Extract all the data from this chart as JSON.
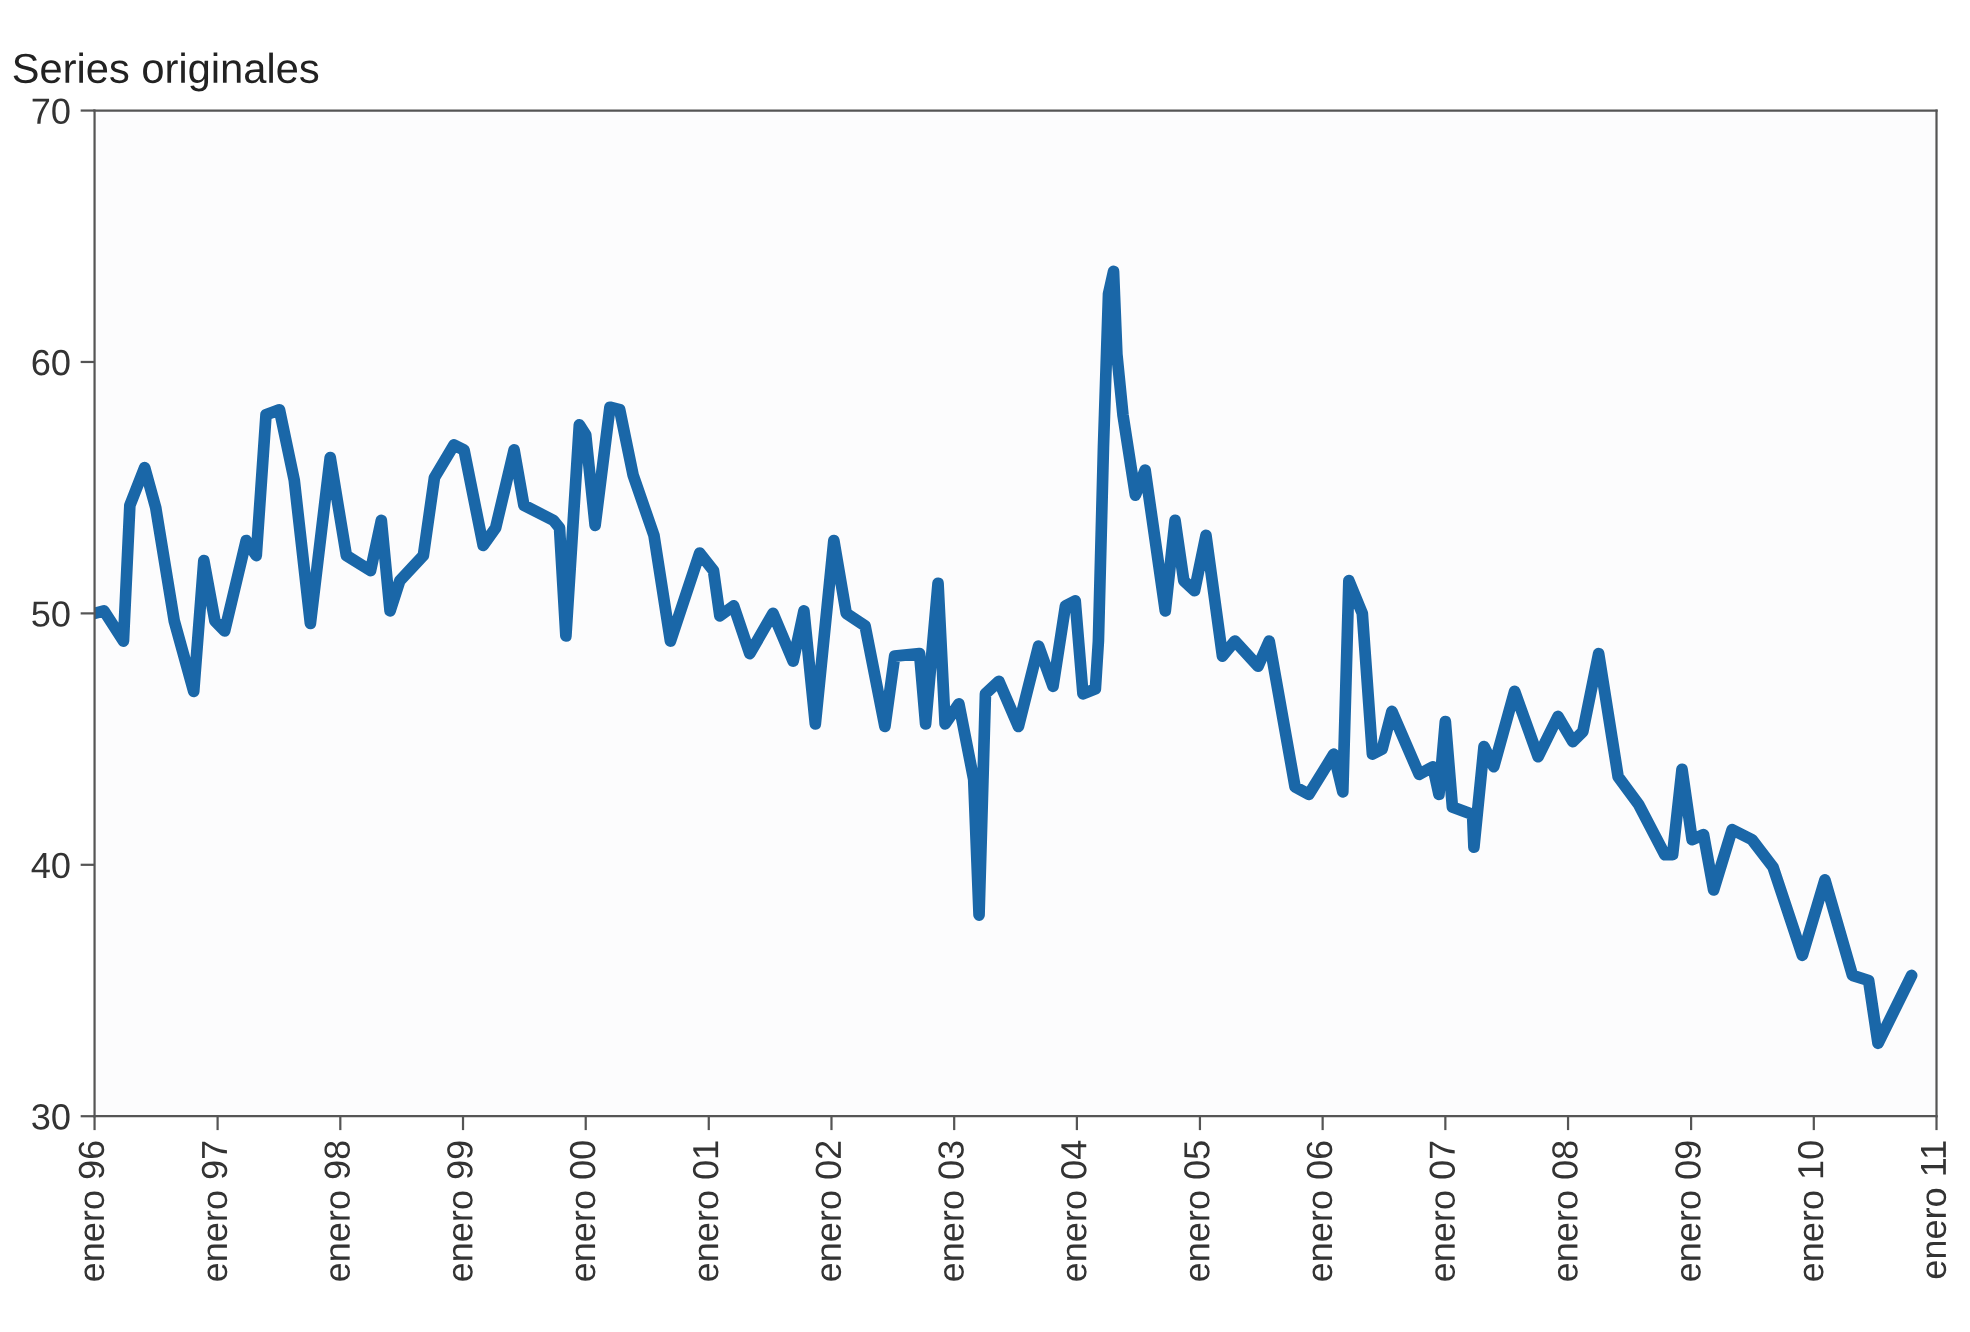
{
  "chart_data": {
    "type": "line",
    "title": "Series originales",
    "xlim": [
      "1996-01-01",
      "2011-01-01"
    ],
    "ylim": [
      30,
      70
    ],
    "yticks": [
      30,
      40,
      50,
      60,
      70
    ],
    "xticks": [
      {
        "value": "1996-01-01",
        "label": "enero 96"
      },
      {
        "value": "1997-01-01",
        "label": "enero 97"
      },
      {
        "value": "1998-01-01",
        "label": "enero 98"
      },
      {
        "value": "1999-01-01",
        "label": "enero 99"
      },
      {
        "value": "2000-01-01",
        "label": "enero 00"
      },
      {
        "value": "2001-01-01",
        "label": "enero 01"
      },
      {
        "value": "2002-01-01",
        "label": "enero 02"
      },
      {
        "value": "2003-01-01",
        "label": "enero 03"
      },
      {
        "value": "2004-01-01",
        "label": "enero 04"
      },
      {
        "value": "2005-01-01",
        "label": "enero 05"
      },
      {
        "value": "2006-01-01",
        "label": "enero 06"
      },
      {
        "value": "2007-01-01",
        "label": "enero 07"
      },
      {
        "value": "2008-01-01",
        "label": "enero 08"
      },
      {
        "value": "2009-01-01",
        "label": "enero 09"
      },
      {
        "value": "2010-01-01",
        "label": "enero 10"
      },
      {
        "value": "2011-01-01",
        "label": "enero 11"
      }
    ],
    "grid": false,
    "legend": false,
    "marker": "none",
    "line_style": "solid",
    "series": [
      {
        "color": "#1a67a8",
        "x": [
          "1996-01-01",
          "1996-01-29",
          "1996-03-27",
          "1996-04-15",
          "1996-05-29",
          "1996-07-01",
          "1996-08-25",
          "1996-10-22",
          "1996-11-21",
          "1996-12-24",
          "1997-01-22",
          "1997-03-27",
          "1997-04-26",
          "1997-05-25",
          "1997-07-04",
          "1997-08-17",
          "1997-10-04",
          "1997-12-02",
          "1998-01-19",
          "1998-04-01",
          "1998-05-03",
          "1998-05-29",
          "1998-06-27",
          "1998-09-05",
          "1998-10-08",
          "1998-12-05",
          "1999-01-04",
          "1999-03-02",
          "1999-04-08",
          "1999-06-02",
          "1999-07-01",
          "1999-09-27",
          "1999-10-15",
          "1999-11-03",
          "1999-12-13",
          "2000-01-01",
          "2000-01-29",
          "2000-03-13",
          "2000-04-11",
          "2000-05-21",
          "2000-07-22",
          "2000-09-09",
          "2000-12-05",
          "2001-01-15",
          "2001-02-03",
          "2001-03-16",
          "2001-05-03",
          "2001-07-11",
          "2001-09-09",
          "2001-10-11",
          "2001-11-14",
          "2002-01-08",
          "2002-02-14",
          "2002-04-11",
          "2002-06-09",
          "2002-07-08",
          "2002-09-20",
          "2002-10-08",
          "2002-11-14",
          "2002-12-05",
          "2003-01-15",
          "2003-02-28",
          "2003-03-16",
          "2003-04-04",
          "2003-05-14",
          "2003-07-11",
          "2003-09-09",
          "2003-10-22",
          "2003-11-28",
          "2003-12-27",
          "2004-01-19",
          "2004-02-25",
          "2004-03-05",
          "2004-03-20",
          "2004-04-04",
          "2004-04-19",
          "2004-04-29",
          "2004-05-17",
          "2004-06-23",
          "2004-07-22",
          "2004-09-20",
          "2004-10-19",
          "2004-11-14",
          "2004-12-16",
          "2005-01-19",
          "2005-03-09",
          "2005-04-15",
          "2005-06-23",
          "2005-07-26",
          "2005-10-11",
          "2005-11-21",
          "2006-02-03",
          "2006-03-02",
          "2006-03-20",
          "2006-04-29",
          "2006-05-29",
          "2006-06-27",
          "2006-07-26",
          "2006-10-15",
          "2006-11-25",
          "2006-12-13",
          "2007-01-01",
          "2007-01-22",
          "2007-03-23",
          "2007-03-27",
          "2007-04-26",
          "2007-05-25",
          "2007-07-26",
          "2007-10-04",
          "2007-12-02",
          "2008-01-15",
          "2008-02-14",
          "2008-04-01",
          "2008-05-29",
          "2008-07-29",
          "2008-10-15",
          "2008-11-07",
          "2008-12-05",
          "2009-01-04",
          "2009-02-07",
          "2009-03-09",
          "2009-05-03",
          "2009-07-01",
          "2009-09-02",
          "2009-11-28",
          "2010-02-03",
          "2010-04-26",
          "2010-06-13",
          "2010-07-11",
          "2010-10-19"
        ],
        "values": [
          50.0,
          50.1,
          48.9,
          54.3,
          55.8,
          54.2,
          49.7,
          46.9,
          52.1,
          49.7,
          49.3,
          52.9,
          52.3,
          57.9,
          58.1,
          55.3,
          49.6,
          56.2,
          52.3,
          51.7,
          53.7,
          50.1,
          51.3,
          52.3,
          55.4,
          56.7,
          56.5,
          52.7,
          53.4,
          56.5,
          54.3,
          53.7,
          53.4,
          49.1,
          57.5,
          57.1,
          53.5,
          58.2,
          58.1,
          55.5,
          53.1,
          48.9,
          52.4,
          51.7,
          49.9,
          50.3,
          48.4,
          50.0,
          48.1,
          50.1,
          45.6,
          52.9,
          50.0,
          49.5,
          45.5,
          48.3,
          48.4,
          45.6,
          51.2,
          45.6,
          46.4,
          43.4,
          38.0,
          46.8,
          47.3,
          45.5,
          48.7,
          47.1,
          50.3,
          50.5,
          46.8,
          47.0,
          48.9,
          56.6,
          62.7,
          63.6,
          60.3,
          57.9,
          54.7,
          55.7,
          50.1,
          53.7,
          51.3,
          50.9,
          53.1,
          48.3,
          48.9,
          47.9,
          48.9,
          43.1,
          42.8,
          44.4,
          42.9,
          51.3,
          50.0,
          44.4,
          44.6,
          46.1,
          43.6,
          43.9,
          42.8,
          45.7,
          42.3,
          42.0,
          40.7,
          44.7,
          43.9,
          46.9,
          44.3,
          45.9,
          44.9,
          45.3,
          48.4,
          43.5,
          42.4,
          40.4,
          40.4,
          43.8,
          41.0,
          41.2,
          39.0,
          41.4,
          41.0,
          39.9,
          36.4,
          39.4,
          35.6,
          35.4,
          32.9,
          35.6
        ]
      }
    ]
  }
}
